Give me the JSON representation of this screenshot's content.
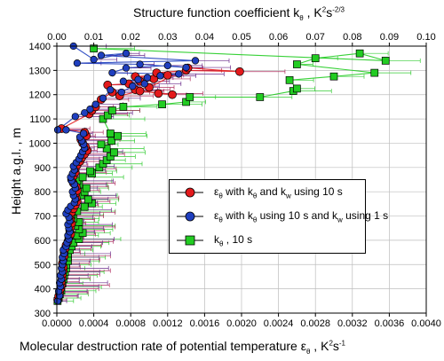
{
  "chart_data": {
    "type": "scatter",
    "x_bottom": {
      "label": "Molecular destruction rate of potential temperature ε",
      "label_sub": "θ",
      "label_unit": " , K",
      "label_unit_sup": "2",
      "label_unit_tail": "s",
      "label_unit_tail_sup": "-1",
      "range": [
        0,
        0.004
      ],
      "ticks": [
        "0.0000",
        "0.0004",
        "0.0008",
        "0.0012",
        "0.0016",
        "0.0020",
        "0.0024",
        "0.0028",
        "0.0032",
        "0.0036",
        "0.0040"
      ]
    },
    "x_top": {
      "label": "Structure function coefficient k",
      "label_sub": "θ",
      "label_unit": " , K",
      "label_unit_sup": "2",
      "label_unit_tail": "s",
      "label_unit_tail_sup": "-2/3",
      "range": [
        0,
        0.1
      ],
      "ticks": [
        "0.00",
        "0.01",
        "0.02",
        "0.03",
        "0.04",
        "0.05",
        "0.06",
        "0.07",
        "0.08",
        "0.09",
        "0.10"
      ]
    },
    "y": {
      "label": "Height a.g.l. , m",
      "range": [
        300,
        1400
      ],
      "ticks": [
        "300",
        "400",
        "500",
        "600",
        "700",
        "800",
        "900",
        "1000",
        "1100",
        "1200",
        "1300",
        "1400"
      ]
    },
    "grid": true,
    "legend_position": "center-right",
    "series": [
      {
        "name": "ε",
        "name_sub": "θ",
        "name_tail": " with k",
        "name_tail_sub": "θ",
        "name_tail2": " and k",
        "name_tail2_sub": "w",
        "name_tail3": " using 10 s",
        "axis": "bottom",
        "color": "#e31a1c",
        "errorbar_color": "#b03060",
        "marker": "circle",
        "points": [
          [
            1e-05,
            355
          ],
          [
            2e-05,
            370
          ],
          [
            3e-05,
            385
          ],
          [
            4e-05,
            400
          ],
          [
            5e-05,
            415
          ],
          [
            5e-05,
            430
          ],
          [
            6e-05,
            445
          ],
          [
            6e-05,
            460
          ],
          [
            7e-05,
            475
          ],
          [
            7e-05,
            490
          ],
          [
            6e-05,
            505
          ],
          [
            7e-05,
            520
          ],
          [
            8e-05,
            535
          ],
          [
            8e-05,
            550
          ],
          [
            9e-05,
            565
          ],
          [
            0.0001,
            580
          ],
          [
            0.00012,
            595
          ],
          [
            0.00013,
            610
          ],
          [
            0.00015,
            625
          ],
          [
            0.00014,
            640
          ],
          [
            0.00015,
            655
          ],
          [
            0.00016,
            670
          ],
          [
            0.00015,
            685
          ],
          [
            0.00014,
            700
          ],
          [
            0.00016,
            715
          ],
          [
            0.00018,
            730
          ],
          [
            0.0002,
            745
          ],
          [
            0.00022,
            760
          ],
          [
            0.00021,
            775
          ],
          [
            0.0002,
            790
          ],
          [
            0.00022,
            805
          ],
          [
            0.00021,
            820
          ],
          [
            0.00018,
            835
          ],
          [
            0.00016,
            850
          ],
          [
            0.00018,
            865
          ],
          [
            0.0002,
            880
          ],
          [
            0.0002,
            895
          ],
          [
            0.00022,
            910
          ],
          [
            0.00025,
            925
          ],
          [
            0.00027,
            940
          ],
          [
            0.0003,
            955
          ],
          [
            0.00033,
            970
          ],
          [
            0.00031,
            985
          ],
          [
            0.00028,
            1000
          ],
          [
            0.00026,
            1015
          ],
          [
            0.00032,
            1030
          ],
          [
            0.0003,
            1045
          ],
          [
            5e-05,
            1060
          ],
          [
            0.00035,
            1120
          ],
          [
            0.00038,
            1135
          ],
          [
            0.00042,
            1150
          ],
          [
            0.00048,
            1180
          ],
          [
            0.0006,
            1210
          ],
          [
            0.00055,
            1240
          ],
          [
            0.00078,
            1245
          ],
          [
            0.0009,
            1255
          ],
          [
            0.00105,
            1265
          ],
          [
            0.00085,
            1275
          ],
          [
            0.0012,
            1280
          ],
          [
            0.00108,
            1290
          ],
          [
            0.0014,
            1300
          ],
          [
            0.00198,
            1295
          ],
          [
            0.00142,
            1310
          ],
          [
            0.001,
            1230
          ],
          [
            0.00085,
            1220
          ],
          [
            0.0011,
            1205
          ],
          [
            0.00125,
            1200
          ],
          [
            0.0009,
            1215
          ],
          [
            0.00068,
            1195
          ]
        ]
      },
      {
        "name": "ε",
        "name_sub": "θ",
        "name_tail": " with k",
        "name_tail_sub": "θ",
        "name_tail2": " using 10 s and k",
        "name_tail2_sub": "w",
        "name_tail3": " using 1 s",
        "axis": "bottom",
        "color": "#1f3fbf",
        "errorbar_color": "#6a2a8a",
        "marker": "circle",
        "points": [
          [
            1e-05,
            350
          ],
          [
            3e-05,
            372
          ],
          [
            2e-05,
            390
          ],
          [
            4e-05,
            410
          ],
          [
            3e-05,
            425
          ],
          [
            5e-05,
            440
          ],
          [
            4e-05,
            455
          ],
          [
            6e-05,
            470
          ],
          [
            5e-05,
            485
          ],
          [
            6e-05,
            500
          ],
          [
            7e-05,
            515
          ],
          [
            6e-05,
            530
          ],
          [
            8e-05,
            545
          ],
          [
            7e-05,
            560
          ],
          [
            0.0001,
            575
          ],
          [
            0.00011,
            590
          ],
          [
            0.00013,
            605
          ],
          [
            0.00012,
            620
          ],
          [
            0.00014,
            635
          ],
          [
            0.00013,
            650
          ],
          [
            0.00012,
            665
          ],
          [
            0.00014,
            680
          ],
          [
            0.00013,
            695
          ],
          [
            0.0001,
            710
          ],
          [
            0.00012,
            725
          ],
          [
            0.00015,
            740
          ],
          [
            0.00019,
            755
          ],
          [
            0.0002,
            770
          ],
          [
            0.00018,
            785
          ],
          [
            0.00017,
            800
          ],
          [
            0.0002,
            815
          ],
          [
            0.00019,
            830
          ],
          [
            0.00016,
            845
          ],
          [
            0.00015,
            860
          ],
          [
            0.00017,
            875
          ],
          [
            0.00019,
            890
          ],
          [
            0.00018,
            905
          ],
          [
            0.00021,
            920
          ],
          [
            0.00024,
            935
          ],
          [
            0.00026,
            950
          ],
          [
            0.00028,
            965
          ],
          [
            0.0003,
            980
          ],
          [
            0.00029,
            995
          ],
          [
            0.00027,
            1010
          ],
          [
            0.00025,
            1025
          ],
          [
            0.00029,
            1040
          ],
          [
            0.0001,
            1055
          ],
          [
            1e-05,
            1055
          ],
          [
            0.0002,
            1110
          ],
          [
            0.0003,
            1125
          ],
          [
            0.00036,
            1140
          ],
          [
            0.00042,
            1160
          ],
          [
            0.0005,
            1185
          ],
          [
            0.00058,
            1220
          ],
          [
            0.0007,
            1210
          ],
          [
            0.00082,
            1235
          ],
          [
            0.00095,
            1245
          ],
          [
            0.00072,
            1255
          ],
          [
            0.00088,
            1262
          ],
          [
            0.00098,
            1270
          ],
          [
            0.00112,
            1278
          ],
          [
            0.00132,
            1285
          ],
          [
            0.0006,
            1290
          ],
          [
            0.00075,
            1310
          ],
          [
            0.0012,
            1320
          ],
          [
            0.0014,
            1312
          ],
          [
            0.0009,
            1325
          ],
          [
            0.00022,
            1330
          ],
          [
            0.0015,
            1340
          ],
          [
            0.00048,
            1362
          ],
          [
            0.00075,
            1370
          ],
          [
            0.0004,
            1345
          ],
          [
            0.00018,
            1400
          ]
        ]
      },
      {
        "name": "k",
        "name_sub": "θ",
        "name_tail": " , 10 s",
        "axis": "top",
        "color": "#22cc22",
        "errorbar_color": "#33cc33",
        "marker": "square",
        "points": [
          [
            0.0002,
            350
          ],
          [
            0.0005,
            362
          ],
          [
            0.0008,
            378
          ],
          [
            0.0012,
            392
          ],
          [
            0.001,
            408
          ],
          [
            0.0015,
            422
          ],
          [
            0.0018,
            440
          ],
          [
            0.002,
            455
          ],
          [
            0.0022,
            470
          ],
          [
            0.0025,
            485
          ],
          [
            0.0025,
            500
          ],
          [
            0.003,
            515
          ],
          [
            0.003,
            530
          ],
          [
            0.003,
            545
          ],
          [
            0.0035,
            560
          ],
          [
            0.004,
            575
          ],
          [
            0.0045,
            590
          ],
          [
            0.006,
            605
          ],
          [
            0.0055,
            620
          ],
          [
            0.007,
            630
          ],
          [
            0.006,
            645
          ],
          [
            0.005,
            660
          ],
          [
            0.006,
            675
          ],
          [
            0.0045,
            690
          ],
          [
            0.004,
            705
          ],
          [
            0.0055,
            720
          ],
          [
            0.0075,
            738
          ],
          [
            0.0095,
            752
          ],
          [
            0.0085,
            768
          ],
          [
            0.0065,
            785
          ],
          [
            0.0075,
            800
          ],
          [
            0.008,
            815
          ],
          [
            0.006,
            830
          ],
          [
            0.0055,
            845
          ],
          [
            0.007,
            860
          ],
          [
            0.0095,
            875
          ],
          [
            0.009,
            885
          ],
          [
            0.0115,
            900
          ],
          [
            0.0125,
            915
          ],
          [
            0.0135,
            930
          ],
          [
            0.0145,
            945
          ],
          [
            0.0155,
            962
          ],
          [
            0.0135,
            978
          ],
          [
            0.012,
            995
          ],
          [
            0.0148,
            1010
          ],
          [
            0.0165,
            1030
          ],
          [
            0.0145,
            1040
          ],
          [
            0.0125,
            1100
          ],
          [
            0.0138,
            1115
          ],
          [
            0.015,
            1135
          ],
          [
            0.018,
            1150
          ],
          [
            0.0285,
            1160
          ],
          [
            0.035,
            1170
          ],
          [
            0.036,
            1190
          ],
          [
            0.055,
            1190
          ],
          [
            0.064,
            1215
          ],
          [
            0.065,
            1225
          ],
          [
            0.063,
            1260
          ],
          [
            0.075,
            1275
          ],
          [
            0.086,
            1290
          ],
          [
            0.065,
            1325
          ],
          [
            0.07,
            1350
          ],
          [
            0.082,
            1370
          ],
          [
            0.089,
            1340
          ],
          [
            0.01,
            1390
          ]
        ]
      }
    ]
  }
}
